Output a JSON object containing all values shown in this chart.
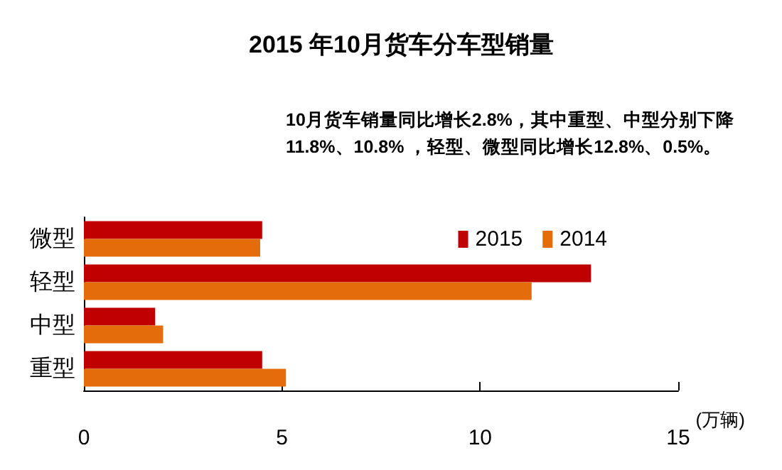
{
  "chart_data": {
    "type": "bar",
    "orientation": "horizontal",
    "title": "2015 年10月货车分车型销量",
    "annotations": [
      "10月货车销量同比增长2.8%，其中重型、中型分别下降11.8%、10.8% ，轻型、微型同比增长12.8%、0.5%。"
    ],
    "xlabel": "(万辆)",
    "categories": [
      "微型",
      "轻型",
      "中型",
      "重型"
    ],
    "series": [
      {
        "name": "2015",
        "color": "#c00000",
        "values": [
          4.5,
          12.8,
          1.8,
          4.5
        ]
      },
      {
        "name": "2014",
        "color": "#e46c0a",
        "values": [
          4.45,
          11.3,
          2.0,
          5.1
        ]
      }
    ],
    "xlim": [
      0,
      15
    ],
    "xticks": [
      0,
      5,
      10,
      15
    ],
    "grid": false,
    "legend": "top right"
  }
}
